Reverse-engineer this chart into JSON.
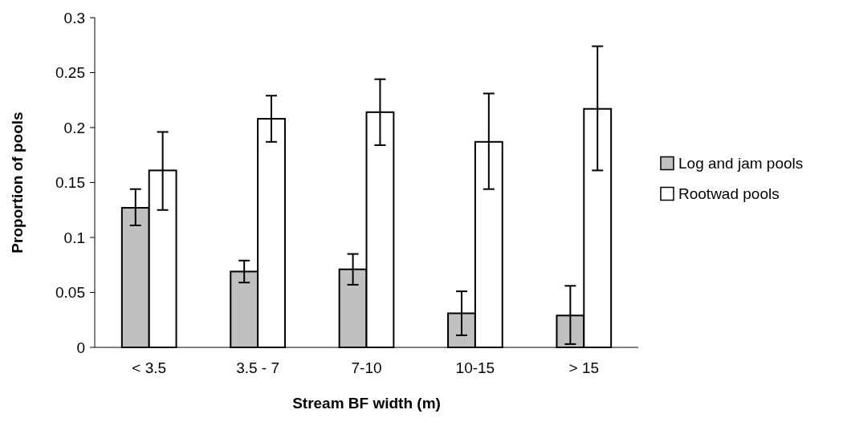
{
  "chart_data": {
    "type": "bar",
    "xlabel": "Stream BF width (m)",
    "ylabel": "Proportion of pools",
    "categories": [
      "< 3.5",
      "3.5 - 7",
      "7-10",
      "10-15",
      "> 15"
    ],
    "series": [
      {
        "name": "Log and jam pools",
        "color": "#c0c0c0",
        "values": [
          0.127,
          0.069,
          0.071,
          0.031,
          0.029
        ],
        "errors": [
          [
            0.111,
            0.144
          ],
          [
            0.059,
            0.079
          ],
          [
            0.057,
            0.085
          ],
          [
            0.011,
            0.051
          ],
          [
            0.003,
            0.056
          ]
        ]
      },
      {
        "name": "Rootwad pools",
        "color": "#ffffff",
        "values": [
          0.161,
          0.208,
          0.214,
          0.187,
          0.217
        ],
        "errors": [
          [
            0.125,
            0.196
          ],
          [
            0.187,
            0.229
          ],
          [
            0.184,
            0.244
          ],
          [
            0.144,
            0.231
          ],
          [
            0.161,
            0.274
          ]
        ]
      }
    ],
    "ylim": [
      0,
      0.3
    ],
    "yticks": [
      0,
      0.05,
      0.1,
      0.15,
      0.2,
      0.25,
      0.3
    ],
    "grid": false,
    "legend": "right"
  }
}
